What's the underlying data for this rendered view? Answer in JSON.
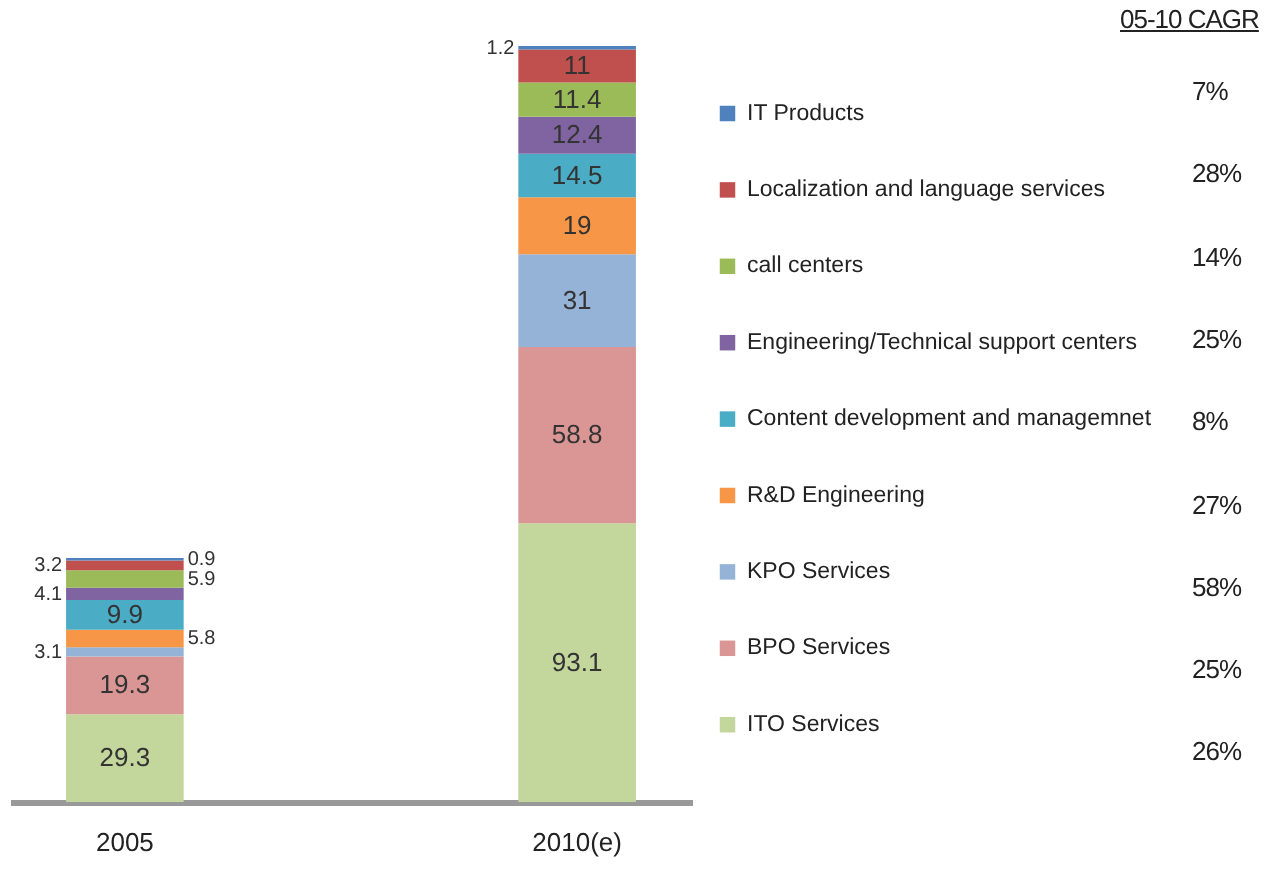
{
  "chart_data": {
    "type": "bar",
    "stacked": true,
    "categories": [
      "2005",
      "2010(e)"
    ],
    "series": [
      {
        "name": "ITO Services",
        "color": "#c3d69b",
        "values": [
          29.3,
          93.1
        ]
      },
      {
        "name": "BPO Services",
        "color": "#d99694",
        "values": [
          19.3,
          58.8
        ]
      },
      {
        "name": "KPO Services",
        "color": "#95b3d7",
        "values": [
          3.1,
          31
        ]
      },
      {
        "name": "R&D Engineering",
        "color": "#f79646",
        "values": [
          5.8,
          19
        ]
      },
      {
        "name": "Content development  and managemnet",
        "color": "#4bacc6",
        "values": [
          9.9,
          14.5
        ]
      },
      {
        "name": "Engineering/Technical  support centers",
        "color": "#8064a2",
        "values": [
          4.1,
          12.4
        ]
      },
      {
        "name": "call centers",
        "color": "#9bbb59",
        "values": [
          5.9,
          11.4
        ]
      },
      {
        "name": "Localization and language  services",
        "color": "#c0504d",
        "values": [
          3.2,
          11
        ]
      },
      {
        "name": "IT Products",
        "color": "#4f81bd",
        "values": [
          0.9,
          1.2
        ]
      }
    ],
    "data_labels": true,
    "legend": "right",
    "annotations": [
      "05-10 CAGR",
      "7%",
      "28%",
      "14%",
      "25%",
      "8%",
      "27%",
      "58%",
      "25%",
      "26%"
    ]
  }
}
